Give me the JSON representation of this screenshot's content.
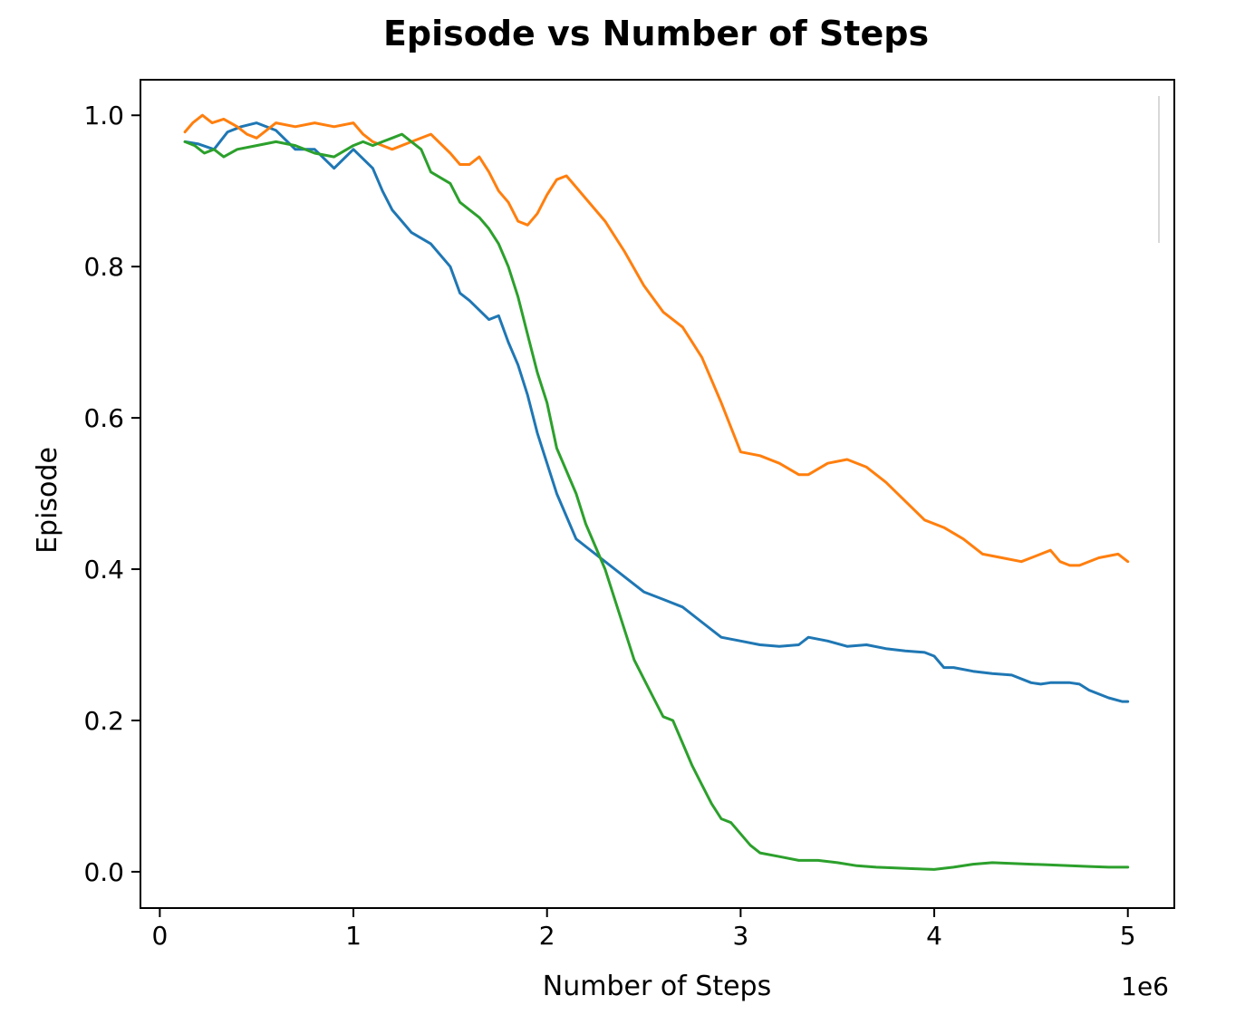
{
  "chart_data": {
    "type": "line",
    "title": "Episode vs Number of Steps",
    "xlabel": "Number of Steps",
    "ylabel": "Episode",
    "x_offset_label": "1e6",
    "xlim": [
      -0.1,
      5.24
    ],
    "ylim": [
      -0.048,
      1.047
    ],
    "x_ticks": [
      0,
      1,
      2,
      3,
      4,
      5
    ],
    "x_tick_labels": [
      "0",
      "1",
      "2",
      "3",
      "4",
      "5"
    ],
    "y_ticks": [
      0.0,
      0.2,
      0.4,
      0.6,
      0.8,
      1.0
    ],
    "y_tick_labels": [
      "0.0",
      "0.2",
      "0.4",
      "0.6",
      "0.8",
      "1.0"
    ],
    "grid": false,
    "legend": "top-right",
    "series": [
      {
        "color": "#1f77b4",
        "x": [
          0.13,
          0.2,
          0.28,
          0.35,
          0.42,
          0.5,
          0.6,
          0.7,
          0.8,
          0.9,
          1.0,
          1.1,
          1.15,
          1.2,
          1.25,
          1.3,
          1.4,
          1.5,
          1.55,
          1.6,
          1.7,
          1.75,
          1.8,
          1.85,
          1.9,
          1.95,
          2.0,
          2.05,
          2.1,
          2.15,
          2.2,
          2.3,
          2.4,
          2.5,
          2.6,
          2.7,
          2.8,
          2.9,
          3.0,
          3.1,
          3.2,
          3.3,
          3.35,
          3.45,
          3.55,
          3.65,
          3.75,
          3.85,
          3.95,
          4.0,
          4.05,
          4.1,
          4.2,
          4.3,
          4.4,
          4.5,
          4.55,
          4.6,
          4.7,
          4.75,
          4.8,
          4.9,
          4.97,
          5.0
        ],
        "y": [
          0.965,
          0.962,
          0.955,
          0.978,
          0.985,
          0.99,
          0.98,
          0.955,
          0.955,
          0.93,
          0.955,
          0.93,
          0.9,
          0.875,
          0.86,
          0.845,
          0.83,
          0.8,
          0.765,
          0.755,
          0.73,
          0.735,
          0.7,
          0.67,
          0.63,
          0.58,
          0.54,
          0.5,
          0.47,
          0.44,
          0.43,
          0.41,
          0.39,
          0.37,
          0.36,
          0.35,
          0.33,
          0.31,
          0.305,
          0.3,
          0.298,
          0.3,
          0.31,
          0.305,
          0.298,
          0.3,
          0.295,
          0.292,
          0.29,
          0.285,
          0.27,
          0.27,
          0.265,
          0.262,
          0.26,
          0.25,
          0.248,
          0.25,
          0.25,
          0.248,
          0.24,
          0.23,
          0.225,
          0.225
        ]
      },
      {
        "color": "#ff7f0e",
        "x": [
          0.13,
          0.17,
          0.22,
          0.27,
          0.33,
          0.4,
          0.45,
          0.5,
          0.6,
          0.7,
          0.8,
          0.9,
          1.0,
          1.05,
          1.1,
          1.2,
          1.3,
          1.4,
          1.5,
          1.55,
          1.6,
          1.65,
          1.7,
          1.75,
          1.8,
          1.85,
          1.9,
          1.95,
          2.0,
          2.05,
          2.1,
          2.15,
          2.2,
          2.3,
          2.4,
          2.5,
          2.6,
          2.7,
          2.8,
          2.9,
          3.0,
          3.1,
          3.2,
          3.3,
          3.35,
          3.45,
          3.55,
          3.65,
          3.75,
          3.85,
          3.95,
          4.05,
          4.15,
          4.25,
          4.35,
          4.45,
          4.55,
          4.6,
          4.65,
          4.7,
          4.75,
          4.85,
          4.95,
          5.0
        ],
        "y": [
          0.978,
          0.99,
          1.0,
          0.99,
          0.995,
          0.985,
          0.975,
          0.97,
          0.99,
          0.985,
          0.99,
          0.985,
          0.99,
          0.975,
          0.965,
          0.955,
          0.965,
          0.975,
          0.95,
          0.935,
          0.935,
          0.945,
          0.925,
          0.9,
          0.885,
          0.86,
          0.855,
          0.87,
          0.895,
          0.915,
          0.92,
          0.905,
          0.89,
          0.86,
          0.82,
          0.775,
          0.74,
          0.72,
          0.68,
          0.62,
          0.555,
          0.55,
          0.54,
          0.525,
          0.525,
          0.54,
          0.545,
          0.535,
          0.515,
          0.49,
          0.465,
          0.455,
          0.44,
          0.42,
          0.415,
          0.41,
          0.42,
          0.425,
          0.41,
          0.405,
          0.405,
          0.415,
          0.42,
          0.41
        ]
      },
      {
        "color": "#2ca02c",
        "x": [
          0.13,
          0.18,
          0.23,
          0.28,
          0.33,
          0.4,
          0.5,
          0.6,
          0.7,
          0.8,
          0.9,
          1.0,
          1.05,
          1.1,
          1.15,
          1.2,
          1.25,
          1.3,
          1.35,
          1.4,
          1.5,
          1.55,
          1.6,
          1.65,
          1.7,
          1.75,
          1.8,
          1.85,
          1.9,
          1.95,
          2.0,
          2.05,
          2.1,
          2.15,
          2.2,
          2.25,
          2.3,
          2.35,
          2.4,
          2.45,
          2.5,
          2.55,
          2.6,
          2.65,
          2.7,
          2.75,
          2.8,
          2.85,
          2.9,
          2.95,
          3.0,
          3.05,
          3.1,
          3.2,
          3.3,
          3.4,
          3.5,
          3.6,
          3.7,
          3.8,
          3.9,
          4.0,
          4.1,
          4.2,
          4.3,
          4.4,
          4.5,
          4.6,
          4.7,
          4.8,
          4.9,
          5.0
        ],
        "y": [
          0.965,
          0.96,
          0.95,
          0.955,
          0.945,
          0.955,
          0.96,
          0.965,
          0.96,
          0.95,
          0.945,
          0.96,
          0.965,
          0.96,
          0.965,
          0.97,
          0.975,
          0.965,
          0.955,
          0.925,
          0.91,
          0.885,
          0.875,
          0.865,
          0.85,
          0.83,
          0.8,
          0.76,
          0.71,
          0.66,
          0.62,
          0.56,
          0.53,
          0.5,
          0.46,
          0.43,
          0.4,
          0.36,
          0.32,
          0.28,
          0.255,
          0.23,
          0.205,
          0.2,
          0.17,
          0.14,
          0.115,
          0.09,
          0.07,
          0.065,
          0.05,
          0.035,
          0.025,
          0.02,
          0.015,
          0.015,
          0.012,
          0.008,
          0.006,
          0.005,
          0.004,
          0.003,
          0.006,
          0.01,
          0.012,
          0.011,
          0.01,
          0.009,
          0.008,
          0.007,
          0.006,
          0.006
        ]
      }
    ]
  }
}
